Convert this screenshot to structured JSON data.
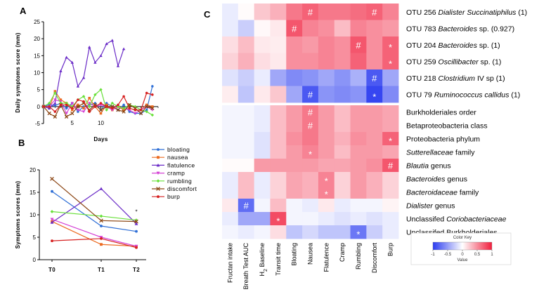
{
  "panels": {
    "a": "A",
    "b": "B",
    "c": "C"
  },
  "chart_data": [
    {
      "type": "line",
      "id": "A",
      "title": "",
      "xlabel": "Days",
      "ylabel": "Daily symptoms score (mm)",
      "xlim": [
        0,
        20
      ],
      "ylim": [
        -5,
        25
      ],
      "xticks": [
        5,
        10
      ],
      "yticks": [
        -5,
        0,
        5,
        10,
        15,
        20,
        25
      ],
      "x": [
        0,
        1,
        2,
        3,
        4,
        5,
        6,
        7,
        8,
        9,
        10,
        11,
        12,
        13,
        14,
        15,
        16,
        17,
        18,
        19
      ],
      "series": [
        {
          "name": "bloating",
          "color": "#2f6fd6",
          "marker": "circle",
          "values": [
            0,
            0.5,
            0.3,
            1,
            -0.5,
            1,
            -1.5,
            0,
            0.5,
            1,
            -1,
            1,
            0,
            -1,
            0.5,
            -1.5,
            -2,
            -2,
            -1,
            6
          ]
        },
        {
          "name": "nausea",
          "color": "#ec6b21",
          "marker": "square",
          "values": [
            0,
            -0.5,
            4.5,
            2,
            1,
            -1,
            0.5,
            -0.5,
            2.5,
            0,
            -2,
            0.5,
            -1,
            0,
            -1,
            -0.5,
            -1,
            -1,
            0.5,
            0
          ]
        },
        {
          "name": "flatulence",
          "color": "#6a2bc7",
          "marker": "triangle",
          "values": [
            0,
            -0.5,
            1,
            10.5,
            14.5,
            13,
            6,
            8.5,
            17.5,
            13,
            15,
            18.5,
            19.5,
            12,
            17,
            null,
            null,
            null,
            null,
            null
          ]
        },
        {
          "name": "cramp",
          "color": "#d43fd4",
          "marker": "tri-down",
          "values": [
            0,
            0,
            2,
            1.5,
            -2,
            1,
            -1,
            -1.5,
            1,
            0,
            0.5,
            0,
            -1,
            0,
            -0.5,
            -1,
            -2,
            -1,
            0,
            -1
          ]
        },
        {
          "name": "rumbling",
          "color": "#69e03a",
          "marker": "diamond",
          "values": [
            0,
            1,
            4,
            1,
            1,
            0,
            2,
            3,
            0,
            3.5,
            5,
            -1,
            1,
            0,
            -0.5,
            0.5,
            0,
            -1,
            -1.5,
            -2.5
          ]
        },
        {
          "name": "discomfort",
          "color": "#8b4513",
          "marker": "x",
          "values": [
            0,
            -2,
            -3,
            0.5,
            -3,
            -2,
            0,
            1,
            -1,
            0.5,
            -1,
            0,
            0,
            -1,
            -1.5,
            0.5,
            -0.5,
            -2,
            0,
            -0.5
          ]
        },
        {
          "name": "burp",
          "color": "#d62020",
          "marker": "circle",
          "values": [
            0,
            0,
            -1.5,
            0.5,
            0.5,
            -0.5,
            2,
            1.5,
            -1.5,
            0,
            1,
            0,
            -0.5,
            0.5,
            3,
            -0.5,
            -1,
            -1,
            4,
            3.5
          ]
        }
      ]
    },
    {
      "type": "line",
      "id": "B",
      "title": "",
      "xlabel": "",
      "ylabel": "Symptoms scores (mm)",
      "ylim": [
        0,
        20
      ],
      "yticks": [
        0,
        5,
        10,
        15,
        20
      ],
      "categories": [
        "T0",
        "T1",
        "T2"
      ],
      "annotation": "*",
      "legend": [
        "bloating",
        "nausea",
        "flatulence",
        "cramp",
        "rumbling",
        "discomfort",
        "burp"
      ],
      "series": [
        {
          "name": "bloating",
          "color": "#2f6fd6",
          "marker": "circle",
          "values": [
            15.2,
            7.5,
            6.3
          ]
        },
        {
          "name": "nausea",
          "color": "#ec6b21",
          "marker": "square",
          "values": [
            8.5,
            3.4,
            3.0
          ]
        },
        {
          "name": "flatulence",
          "color": "#6a2bc7",
          "marker": "triangle",
          "values": [
            8.3,
            15.8,
            8.0
          ]
        },
        {
          "name": "cramp",
          "color": "#d43fd4",
          "marker": "tri-down",
          "values": [
            9.0,
            5.0,
            3.0
          ]
        },
        {
          "name": "rumbling",
          "color": "#69e03a",
          "marker": "diamond",
          "values": [
            10.7,
            9.7,
            8.8
          ]
        },
        {
          "name": "discomfort",
          "color": "#8b4513",
          "marker": "x",
          "values": [
            18.0,
            8.7,
            8.5
          ]
        },
        {
          "name": "burp",
          "color": "#d62020",
          "marker": "circle",
          "values": [
            4.2,
            4.7,
            2.7
          ]
        }
      ]
    },
    {
      "type": "heatmap",
      "id": "C",
      "columns": [
        "Fructan intake",
        "Breath Test AUC",
        "H2 Baseline",
        "Transit time",
        "Bloating",
        "Nausea",
        "Flatulence",
        "Cramp",
        "Rumbling",
        "Discomfort",
        "Burp"
      ],
      "h2_label": {
        "main": "H",
        "sub": "2",
        "rest": " Baseline"
      },
      "block1": {
        "rows": [
          {
            "normal": "OTU 256 ",
            "italic": "Dialister Succinatiphilus",
            "tail": " (1)"
          },
          {
            "normal": "OTU 783 ",
            "italic": "Bacteroides",
            "tail": " sp. (0.927)"
          },
          {
            "normal": "OTU 204 ",
            "italic": "Bacteroides",
            "tail": " sp. (1)"
          },
          {
            "normal": "OTU 259 ",
            "italic": "Oscillibacter",
            "tail": " sp. (1)"
          },
          {
            "normal": "OTU 218 ",
            "italic": "Clostridium",
            "tail": " IV sp (1)"
          },
          {
            "normal": "OTU 79 ",
            "italic": "Ruminococcus callidus",
            "tail": " (1)"
          }
        ],
        "values": [
          [
            -0.1,
            0.02,
            0.25,
            0.35,
            0.6,
            0.7,
            0.6,
            0.6,
            0.65,
            0.7,
            0.55
          ],
          [
            -0.1,
            -0.25,
            0.03,
            0.1,
            0.75,
            0.55,
            0.5,
            0.3,
            0.55,
            0.5,
            0.45
          ],
          [
            0.15,
            0.3,
            0.1,
            0.08,
            0.5,
            0.45,
            0.55,
            0.5,
            0.75,
            0.5,
            0.7
          ],
          [
            0.2,
            0.35,
            0.15,
            0.1,
            0.5,
            0.5,
            0.55,
            0.5,
            0.7,
            0.5,
            0.7
          ],
          [
            -0.15,
            -0.25,
            -0.1,
            -0.45,
            -0.6,
            -0.55,
            -0.45,
            -0.55,
            -0.4,
            -0.85,
            -0.45
          ],
          [
            0.08,
            -0.3,
            0.1,
            0.25,
            -0.45,
            -0.85,
            -0.55,
            -0.6,
            -0.55,
            -0.95,
            -0.6
          ]
        ],
        "marks": [
          {
            "row": 0,
            "col": 5,
            "symbol": "#"
          },
          {
            "row": 0,
            "col": 9,
            "symbol": "#"
          },
          {
            "row": 1,
            "col": 4,
            "symbol": "#"
          },
          {
            "row": 2,
            "col": 8,
            "symbol": "#"
          },
          {
            "row": 2,
            "col": 10,
            "symbol": "*"
          },
          {
            "row": 3,
            "col": 10,
            "symbol": "*"
          },
          {
            "row": 4,
            "col": 9,
            "symbol": "#"
          },
          {
            "row": 5,
            "col": 5,
            "symbol": "#"
          },
          {
            "row": 5,
            "col": 9,
            "symbol": "*"
          }
        ]
      },
      "block2": {
        "rows": [
          {
            "normal": "Burkholderiales order",
            "italic": "",
            "tail": ""
          },
          {
            "normal": "Betaproteobacteria class",
            "italic": "",
            "tail": ""
          },
          {
            "normal": "Proteobacteria phylum",
            "italic": "",
            "tail": ""
          },
          {
            "normal": "",
            "italic": "Sutterellaceae",
            "tail": " family"
          },
          {
            "normal": "",
            "italic": "Blautia",
            "tail": " genus"
          },
          {
            "normal": "",
            "italic": "Bacteroides",
            "tail": " genus"
          },
          {
            "normal": "",
            "italic": "Bacteroidaceae",
            "tail": " family"
          },
          {
            "normal": "",
            "italic": "Dialister",
            "tail": " genus"
          },
          {
            "normal": "Unclassifed ",
            "italic": "Coriobacteriaceae",
            "tail": ""
          },
          {
            "normal": "Unclassifed Burkholderiales",
            "italic": "",
            "tail": ""
          }
        ],
        "values": [
          [
            -0.05,
            -0.05,
            -0.1,
            0.3,
            0.45,
            0.6,
            0.45,
            0.3,
            0.45,
            0.45,
            0.4
          ],
          [
            -0.05,
            -0.05,
            -0.1,
            0.3,
            0.45,
            0.6,
            0.45,
            0.3,
            0.45,
            0.45,
            0.4
          ],
          [
            -0.05,
            -0.05,
            -0.15,
            0.3,
            0.5,
            0.6,
            0.45,
            0.35,
            0.5,
            0.45,
            0.7
          ],
          [
            -0.05,
            -0.05,
            -0.15,
            0.3,
            0.45,
            0.55,
            0.45,
            0.3,
            0.45,
            0.45,
            0.4
          ],
          [
            0.02,
            0.02,
            0.45,
            0.45,
            0.45,
            0.45,
            0.4,
            0.4,
            0.45,
            0.5,
            0.75
          ],
          [
            -0.1,
            0.3,
            -0.1,
            0.2,
            0.4,
            0.35,
            0.55,
            0.2,
            0.45,
            0.35,
            0.2
          ],
          [
            -0.1,
            0.3,
            -0.1,
            0.2,
            0.4,
            0.35,
            0.55,
            0.2,
            0.45,
            0.35,
            0.2
          ],
          [
            0.1,
            -0.75,
            -0.05,
            0.3,
            -0.05,
            -0.1,
            0.1,
            -0.1,
            -0.05,
            -0.05,
            0.05
          ],
          [
            -0.1,
            -0.45,
            -0.45,
            0.8,
            -0.05,
            -0.05,
            -0.1,
            -0.15,
            -0.1,
            -0.15,
            -0.1
          ],
          [
            -0.05,
            -0.1,
            -0.05,
            0.15,
            -0.3,
            -0.2,
            -0.3,
            -0.3,
            -0.7,
            -0.25,
            -0.1
          ]
        ],
        "marks": [
          {
            "row": 0,
            "col": 5,
            "symbol": "#"
          },
          {
            "row": 1,
            "col": 5,
            "symbol": "#"
          },
          {
            "row": 2,
            "col": 10,
            "symbol": "*"
          },
          {
            "row": 3,
            "col": 5,
            "symbol": "*"
          },
          {
            "row": 4,
            "col": 10,
            "symbol": "#"
          },
          {
            "row": 5,
            "col": 6,
            "symbol": "*"
          },
          {
            "row": 6,
            "col": 6,
            "symbol": "*"
          },
          {
            "row": 7,
            "col": 1,
            "symbol": "#"
          },
          {
            "row": 8,
            "col": 3,
            "symbol": "*"
          },
          {
            "row": 9,
            "col": 8,
            "symbol": "*"
          }
        ]
      },
      "color_key": {
        "title": "Color Key",
        "xlabel": "Value",
        "range": [
          -1,
          1
        ],
        "ticks": [
          -1,
          -0.5,
          0,
          0.5,
          1
        ],
        "tick_labels": [
          "-1",
          "-0.5",
          "0",
          "0.5",
          "1"
        ],
        "low_color": "#2b3cf0",
        "mid_color": "#ffffff",
        "high_color": "#f01e3c"
      }
    }
  ]
}
